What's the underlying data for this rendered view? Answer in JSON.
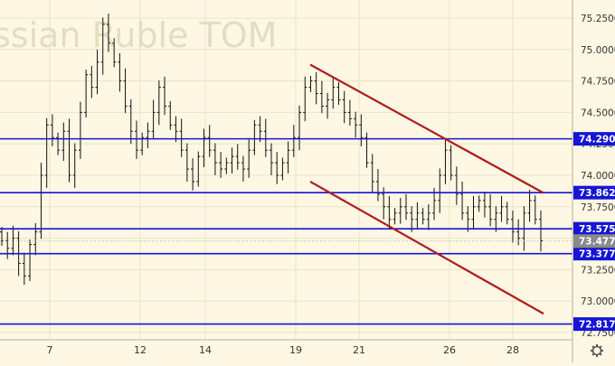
{
  "chart_data": {
    "type": "candlestick",
    "title": "ssian Ruble TOM",
    "watermark": "ssian Ruble TOM",
    "x_tick_labels": [
      "7",
      "12",
      "14",
      "19",
      "21",
      "26",
      "28"
    ],
    "y_tick_labels": [
      "75.2500",
      "75.0000",
      "74.7500",
      "74.5000",
      "74.2500",
      "74.0000",
      "73.7500",
      "73.5000",
      "73.2500",
      "73.0000",
      "72.7500"
    ],
    "ylim": [
      72.7,
      75.35
    ],
    "horizontal_levels": [
      {
        "value": 74.29,
        "label": "74.2900"
      },
      {
        "value": 73.8625,
        "label": "73.8625"
      },
      {
        "value": 73.575,
        "label": "73.5750"
      },
      {
        "value": 73.3775,
        "label": "73.3775"
      },
      {
        "value": 72.8175,
        "label": "72.8175"
      }
    ],
    "current_price": {
      "value": 73.4775,
      "label": "73.4775"
    },
    "trend_channel": [
      {
        "name": "upper",
        "from": {
          "x": "19",
          "y": 74.88
        },
        "to": {
          "x": "29",
          "y": 73.86
        }
      },
      {
        "name": "lower",
        "from": {
          "x": "19",
          "y": 73.95
        },
        "to": {
          "x": "29",
          "y": 72.9
        }
      }
    ],
    "price_path": [
      [
        73.55,
        73.48
      ],
      [
        73.48,
        73.42
      ],
      [
        73.42,
        73.5
      ],
      [
        73.5,
        73.3
      ],
      [
        73.3,
        73.2
      ],
      [
        73.2,
        73.45
      ],
      [
        73.45,
        73.55
      ],
      [
        73.55,
        74.0
      ],
      [
        74.0,
        74.4
      ],
      [
        74.4,
        74.3
      ],
      [
        74.3,
        74.2
      ],
      [
        74.2,
        74.35
      ],
      [
        74.35,
        74.0
      ],
      [
        74.0,
        74.2
      ],
      [
        74.2,
        74.5
      ],
      [
        74.5,
        74.8
      ],
      [
        74.8,
        74.7
      ],
      [
        74.7,
        74.9
      ],
      [
        74.9,
        75.2
      ],
      [
        75.2,
        75.05
      ],
      [
        75.05,
        74.9
      ],
      [
        74.9,
        74.75
      ],
      [
        74.75,
        74.55
      ],
      [
        74.55,
        74.35
      ],
      [
        74.35,
        74.2
      ],
      [
        74.2,
        74.3
      ],
      [
        74.3,
        74.35
      ],
      [
        74.35,
        74.5
      ],
      [
        74.5,
        74.7
      ],
      [
        74.7,
        74.55
      ],
      [
        74.55,
        74.4
      ],
      [
        74.4,
        74.35
      ],
      [
        74.35,
        74.2
      ],
      [
        74.2,
        74.05
      ],
      [
        74.05,
        73.95
      ],
      [
        73.95,
        74.15
      ],
      [
        74.15,
        74.3
      ],
      [
        74.3,
        74.2
      ],
      [
        74.2,
        74.1
      ],
      [
        74.1,
        74.05
      ],
      [
        74.05,
        74.1
      ],
      [
        74.1,
        74.15
      ],
      [
        74.15,
        74.1
      ],
      [
        74.1,
        74.05
      ],
      [
        74.05,
        74.2
      ],
      [
        74.2,
        74.4
      ],
      [
        74.4,
        74.35
      ],
      [
        74.35,
        74.2
      ],
      [
        74.2,
        74.1
      ],
      [
        74.1,
        74.0
      ],
      [
        74.0,
        74.1
      ],
      [
        74.1,
        74.2
      ],
      [
        74.2,
        74.3
      ],
      [
        74.3,
        74.5
      ],
      [
        74.5,
        74.7
      ],
      [
        74.7,
        74.75
      ],
      [
        74.75,
        74.65
      ],
      [
        74.65,
        74.55
      ],
      [
        74.55,
        74.6
      ],
      [
        74.6,
        74.7
      ],
      [
        74.7,
        74.6
      ],
      [
        74.6,
        74.5
      ],
      [
        74.5,
        74.45
      ],
      [
        74.45,
        74.4
      ],
      [
        74.4,
        74.3
      ],
      [
        74.3,
        74.1
      ],
      [
        74.1,
        73.95
      ],
      [
        73.95,
        73.85
      ],
      [
        73.85,
        73.75
      ],
      [
        73.75,
        73.65
      ],
      [
        73.65,
        73.7
      ],
      [
        73.7,
        73.75
      ],
      [
        73.75,
        73.7
      ],
      [
        73.7,
        73.65
      ],
      [
        73.65,
        73.7
      ],
      [
        73.7,
        73.65
      ],
      [
        73.65,
        73.7
      ],
      [
        73.7,
        73.8
      ],
      [
        73.8,
        74.0
      ],
      [
        74.0,
        74.2
      ],
      [
        74.2,
        74.0
      ],
      [
        74.0,
        73.85
      ],
      [
        73.85,
        73.7
      ],
      [
        73.7,
        73.65
      ],
      [
        73.65,
        73.75
      ],
      [
        73.75,
        73.8
      ],
      [
        73.8,
        73.75
      ],
      [
        73.75,
        73.65
      ],
      [
        73.65,
        73.7
      ],
      [
        73.7,
        73.75
      ],
      [
        73.75,
        73.65
      ],
      [
        73.65,
        73.55
      ],
      [
        73.55,
        73.5
      ],
      [
        73.5,
        73.7
      ],
      [
        73.7,
        73.8
      ],
      [
        73.8,
        73.65
      ],
      [
        73.65,
        73.48
      ]
    ],
    "settings_icon": "gear-icon"
  },
  "colors": {
    "background": "#fdf7e3",
    "grid": "#ece4c8",
    "level_line": "#1515d6",
    "level_label_bg": "#1515d6",
    "level_label_text": "#ffffff",
    "channel_line": "#b01c1c",
    "candle": "#111111",
    "current_price_label_bg": "#8a8a8a",
    "axis_text": "#333333",
    "watermark": "#e5ddc2"
  }
}
